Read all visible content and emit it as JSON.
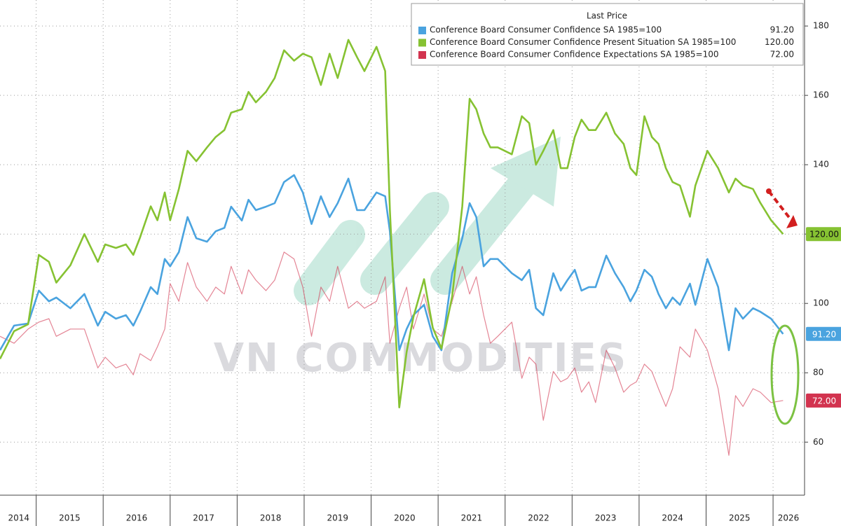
{
  "chart_data": {
    "type": "line",
    "legend_title": "Last Price",
    "watermark": "VN COMMODITIES",
    "x": [
      2014.46,
      2014.67,
      2014.88,
      2015.04,
      2015.19,
      2015.3,
      2015.51,
      2015.72,
      2015.92,
      2016.03,
      2016.19,
      2016.34,
      2016.45,
      2016.55,
      2016.71,
      2016.81,
      2016.92,
      2017.0,
      2017.13,
      2017.26,
      2017.39,
      2017.55,
      2017.68,
      2017.81,
      2017.91,
      2018.07,
      2018.17,
      2018.28,
      2018.43,
      2018.56,
      2018.7,
      2018.85,
      2018.98,
      2019.11,
      2019.25,
      2019.38,
      2019.5,
      2019.66,
      2019.79,
      2019.9,
      2020.08,
      2020.21,
      2020.28,
      2020.42,
      2020.53,
      2020.63,
      2020.79,
      2020.92,
      2021.05,
      2021.21,
      2021.36,
      2021.47,
      2021.57,
      2021.68,
      2021.78,
      2021.89,
      2022.1,
      2022.25,
      2022.36,
      2022.46,
      2022.57,
      2022.72,
      2022.83,
      2022.93,
      2023.04,
      2023.14,
      2023.25,
      2023.35,
      2023.51,
      2023.64,
      2023.77,
      2023.87,
      2023.96,
      2024.08,
      2024.19,
      2024.29,
      2024.4,
      2024.5,
      2024.61,
      2024.76,
      2024.84,
      2025.02,
      2025.18,
      2025.34,
      2025.44,
      2025.55,
      2025.7,
      2025.81,
      2025.97,
      2026.15
    ],
    "series": [
      {
        "name": "Conference Board Consumer Confidence SA 1985=100",
        "color": "#4aa3df",
        "last_value_label": "91.20",
        "values": [
          86.5,
          93.6,
          94.2,
          103.7,
          100.6,
          101.7,
          98.6,
          102.7,
          93.6,
          97.6,
          95.6,
          96.6,
          93.6,
          97.6,
          104.7,
          102.7,
          112.8,
          110.7,
          114.8,
          124.9,
          118.8,
          117.8,
          120.8,
          121.8,
          127.9,
          123.9,
          129.9,
          126.9,
          127.9,
          128.9,
          135,
          137,
          132,
          122.9,
          130.9,
          124.9,
          128.9,
          136,
          126.9,
          126.9,
          132,
          130.9,
          120.8,
          86.5,
          92.6,
          96.6,
          99.6,
          90.5,
          86.5,
          108.7,
          118.8,
          128.9,
          124.9,
          110.7,
          112.8,
          112.8,
          108.7,
          106.7,
          109.7,
          98.6,
          96.6,
          108.7,
          103.7,
          106.7,
          109.7,
          103.7,
          104.7,
          104.7,
          113.8,
          108.7,
          104.7,
          100.6,
          103.7,
          109.7,
          107.7,
          102.7,
          98.6,
          101.7,
          99.6,
          105.7,
          99.6,
          112.8,
          104.7,
          86.5,
          98.6,
          95.6,
          98.6,
          97.6,
          95.6,
          91.2
        ]
      },
      {
        "name": "Conference Board Consumer Confidence Present Situation SA 1985=100",
        "color": "#86c232",
        "last_value_label": "120.00",
        "values": [
          84,
          92,
          94,
          114,
          112,
          106,
          111,
          120,
          112,
          117,
          116,
          117,
          114,
          119,
          128,
          124,
          132,
          124,
          133,
          144,
          141,
          145,
          148,
          150,
          155,
          156,
          161,
          158,
          161,
          165,
          173,
          170,
          172,
          171,
          163,
          172,
          165,
          176,
          171,
          167,
          174,
          167,
          127,
          70,
          86,
          96,
          107,
          93,
          87,
          102,
          128,
          159,
          156,
          149,
          145,
          145,
          143,
          154,
          152,
          140,
          144,
          150,
          139,
          139,
          148,
          153,
          150,
          150,
          155,
          149,
          146,
          139,
          137,
          154,
          148,
          146,
          139,
          135,
          134,
          125,
          134,
          144,
          139,
          132,
          136,
          134,
          133,
          129,
          124,
          120
        ]
      },
      {
        "name": "Conference Board Consumer Confidence Expectations SA 1985=100",
        "color": "#d2334f",
        "last_value_label": "72.00",
        "values": [
          90.5,
          88.5,
          92.6,
          94.6,
          95.6,
          90.5,
          92.6,
          92.6,
          81.4,
          84.5,
          81.4,
          82.5,
          79.4,
          85.5,
          83.5,
          87.5,
          92.6,
          105.7,
          100.6,
          111.8,
          104.7,
          100.6,
          104.7,
          102.7,
          110.7,
          102.7,
          109.7,
          106.7,
          103.7,
          106.7,
          114.8,
          112.8,
          104.7,
          90.5,
          104.7,
          100.6,
          110.7,
          98.6,
          100.6,
          98.6,
          100.6,
          107.7,
          88.5,
          98.6,
          104.7,
          92.6,
          102.7,
          92.6,
          90.5,
          100.6,
          110.7,
          102.7,
          107.7,
          96.6,
          88.5,
          90.5,
          94.6,
          78.4,
          84.5,
          82.5,
          66.3,
          80.4,
          77.4,
          78.4,
          81.4,
          74.4,
          77.4,
          71.4,
          86.5,
          81.4,
          74.4,
          76.4,
          77.4,
          82.5,
          80.4,
          75.4,
          70.3,
          75.4,
          87.5,
          84.5,
          92.6,
          86.5,
          75.4,
          56.2,
          73.4,
          70.3,
          75.4,
          74.4,
          71.4,
          72
        ]
      }
    ],
    "xlim": [
      2014.46,
      2026.47
    ],
    "xticks": [
      {
        "value": 2014.74,
        "label": "2014"
      },
      {
        "value": 2015.5,
        "label": "2015"
      },
      {
        "value": 2016.5,
        "label": "2016"
      },
      {
        "value": 2017.5,
        "label": "2017"
      },
      {
        "value": 2018.5,
        "label": "2018"
      },
      {
        "value": 2019.5,
        "label": "2019"
      },
      {
        "value": 2020.5,
        "label": "2020"
      },
      {
        "value": 2021.5,
        "label": "2021"
      },
      {
        "value": 2022.5,
        "label": "2022"
      },
      {
        "value": 2023.5,
        "label": "2023"
      },
      {
        "value": 2024.5,
        "label": "2024"
      },
      {
        "value": 2025.5,
        "label": "2025"
      },
      {
        "value": 2026.23,
        "label": "2026"
      }
    ],
    "x_gridlines": [
      2015,
      2016,
      2017,
      2018,
      2019,
      2020,
      2021,
      2022,
      2023,
      2024,
      2025,
      2026
    ],
    "ylim": [
      44.7,
      187.5
    ],
    "yticks": [
      60,
      80,
      100,
      120,
      140,
      160,
      180
    ],
    "grid": true
  }
}
